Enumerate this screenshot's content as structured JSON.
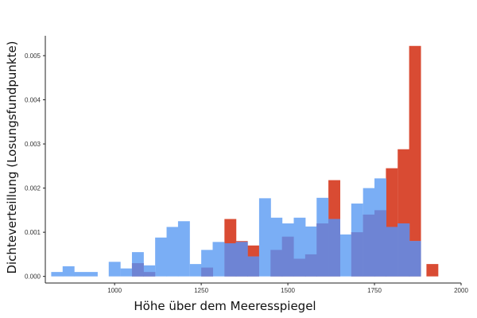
{
  "chart_data": {
    "type": "bar",
    "subtype": "overlaid-histogram",
    "xlabel": "Höhe über dem Meeresspiegel",
    "ylabel": "Dichteverteillung (Losungsfundpunkte)",
    "xlim": [
      800,
      2000
    ],
    "ylim": [
      -0.00015,
      0.00545
    ],
    "xticks": [
      1000,
      1250,
      1500,
      1750,
      2000
    ],
    "xtick_labels": [
      "1000",
      "1250",
      "1500",
      "1750",
      "2000"
    ],
    "yticks": [
      0.0,
      0.001,
      0.002,
      0.003,
      0.004,
      0.005
    ],
    "ytick_labels": [
      "0.000",
      "0.001",
      "0.002",
      "0.003",
      "0.004",
      "0.005"
    ],
    "grid": false,
    "legend": "none",
    "bin_width": 33.3,
    "series": [
      {
        "color": "#d94b33",
        "bins": [
          {
            "x0": 1050,
            "y": 0.0003
          },
          {
            "x0": 1083,
            "y": 0.0001
          },
          {
            "x0": 1250,
            "y": 0.0002
          },
          {
            "x0": 1317,
            "y": 0.0013
          },
          {
            "x0": 1350,
            "y": 0.0008
          },
          {
            "x0": 1383,
            "y": 0.0007
          },
          {
            "x0": 1450,
            "y": 0.0006
          },
          {
            "x0": 1483,
            "y": 0.0009
          },
          {
            "x0": 1517,
            "y": 0.0004
          },
          {
            "x0": 1550,
            "y": 0.0005
          },
          {
            "x0": 1583,
            "y": 0.0012
          },
          {
            "x0": 1617,
            "y": 0.00218
          },
          {
            "x0": 1683,
            "y": 0.001
          },
          {
            "x0": 1717,
            "y": 0.0014
          },
          {
            "x0": 1750,
            "y": 0.0015
          },
          {
            "x0": 1783,
            "y": 0.00245
          },
          {
            "x0": 1817,
            "y": 0.00288
          },
          {
            "x0": 1850,
            "y": 0.00522
          },
          {
            "x0": 1900,
            "y": 0.00028
          }
        ]
      },
      {
        "color": "#7aaef5",
        "bins": [
          {
            "x0": 817,
            "y": 0.0001
          },
          {
            "x0": 850,
            "y": 0.00023
          },
          {
            "x0": 883,
            "y": 0.0001
          },
          {
            "x0": 917,
            "y": 0.0001
          },
          {
            "x0": 983,
            "y": 0.00033
          },
          {
            "x0": 1017,
            "y": 0.00018
          },
          {
            "x0": 1050,
            "y": 0.00055
          },
          {
            "x0": 1083,
            "y": 0.00025
          },
          {
            "x0": 1117,
            "y": 0.00088
          },
          {
            "x0": 1150,
            "y": 0.00112
          },
          {
            "x0": 1183,
            "y": 0.00125
          },
          {
            "x0": 1217,
            "y": 0.00028
          },
          {
            "x0": 1250,
            "y": 0.0006
          },
          {
            "x0": 1283,
            "y": 0.00078
          },
          {
            "x0": 1317,
            "y": 0.00075
          },
          {
            "x0": 1350,
            "y": 0.00078
          },
          {
            "x0": 1383,
            "y": 0.00045
          },
          {
            "x0": 1417,
            "y": 0.00177
          },
          {
            "x0": 1450,
            "y": 0.00133
          },
          {
            "x0": 1483,
            "y": 0.0012
          },
          {
            "x0": 1517,
            "y": 0.00133
          },
          {
            "x0": 1550,
            "y": 0.00113
          },
          {
            "x0": 1583,
            "y": 0.00178
          },
          {
            "x0": 1617,
            "y": 0.0013
          },
          {
            "x0": 1650,
            "y": 0.00095
          },
          {
            "x0": 1683,
            "y": 0.00165
          },
          {
            "x0": 1717,
            "y": 0.002
          },
          {
            "x0": 1750,
            "y": 0.00222
          },
          {
            "x0": 1783,
            "y": 0.00112
          },
          {
            "x0": 1817,
            "y": 0.0012
          },
          {
            "x0": 1850,
            "y": 0.0008
          }
        ]
      }
    ],
    "overlap_color": "#6e84d4"
  }
}
